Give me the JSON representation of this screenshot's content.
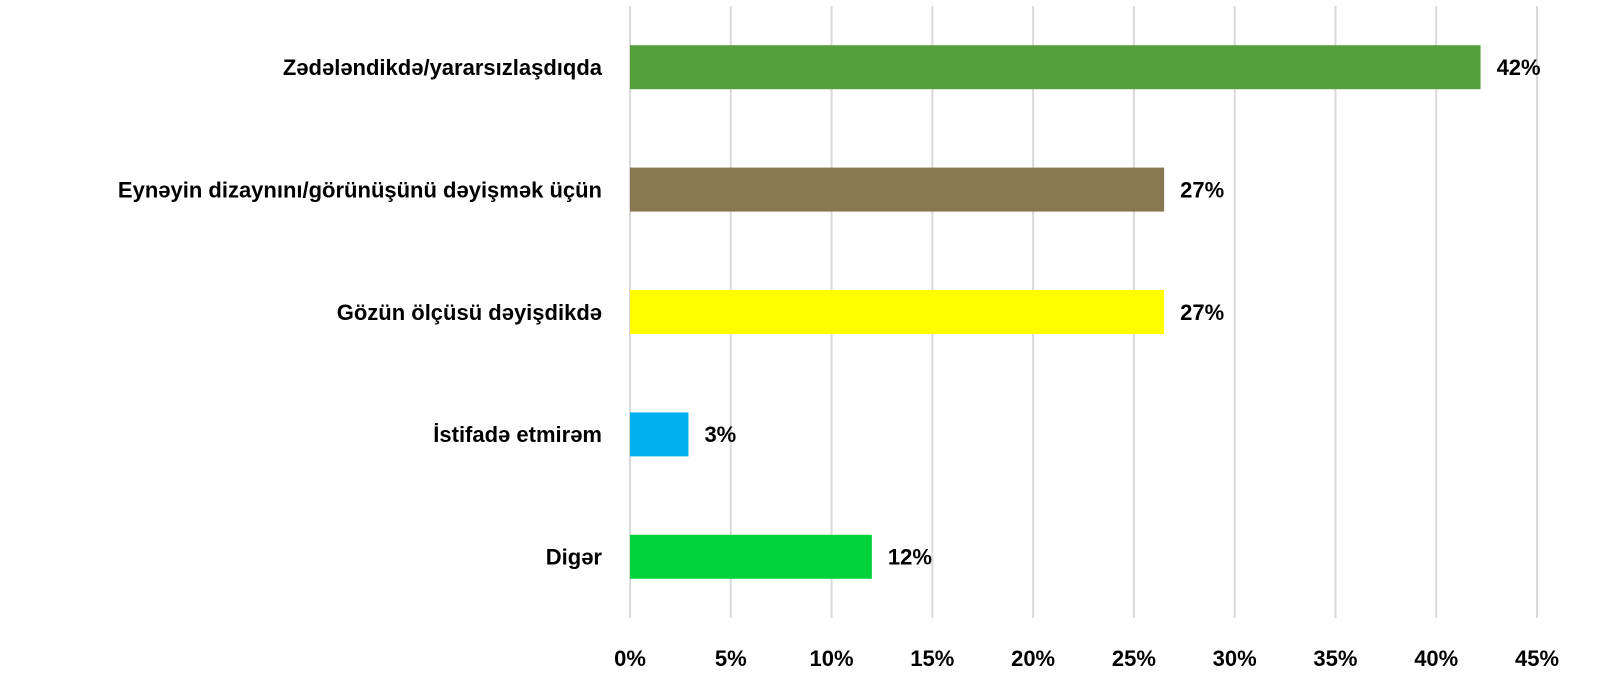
{
  "chart_data": {
    "type": "bar",
    "orientation": "horizontal",
    "categories": [
      "Zədələndikdə/yararsızlaşdıqda",
      "Eynəyin dizaynını/görünüşünü dəyişmək üçün",
      "Gözün ölçüsü dəyişdikdə",
      "İstifadə etmirəm",
      "Digər"
    ],
    "values": [
      42.2,
      26.5,
      26.5,
      2.9,
      12
    ],
    "value_labels": [
      "42%",
      "27%",
      "27%",
      "3%",
      "12%"
    ],
    "colors": [
      "#55a03c",
      "#877852",
      "#ffff00",
      "#00b0f0",
      "#00d23c"
    ],
    "xlim": [
      0,
      45
    ],
    "xticks": [
      {
        "value": 0,
        "label": "0%"
      },
      {
        "value": 5,
        "label": "5%"
      },
      {
        "value": 10,
        "label": "10%"
      },
      {
        "value": 15,
        "label": "15%"
      },
      {
        "value": 20,
        "label": "20%"
      },
      {
        "value": 25,
        "label": "25%"
      },
      {
        "value": 30,
        "label": "30%"
      },
      {
        "value": 35,
        "label": "35%"
      },
      {
        "value": 40,
        "label": "40%"
      },
      {
        "value": 45,
        "label": "45%"
      }
    ],
    "grid": true
  }
}
